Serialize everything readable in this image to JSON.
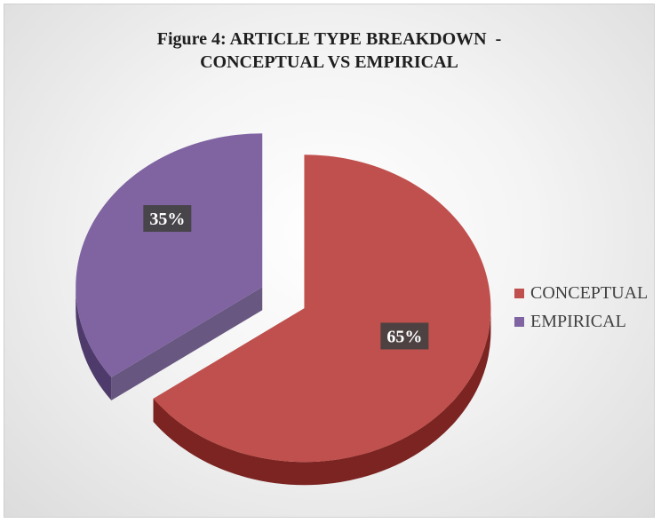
{
  "chart_data": {
    "type": "pie",
    "title_lines": [
      "Figure 4: ARTICLE TYPE BREAKDOWN  -",
      "CONCEPTUAL VS EMPIRICAL"
    ],
    "slices": [
      {
        "label": "CONCEPTUAL",
        "value": 65,
        "display": "65%",
        "color": "#c0504d",
        "side_color": "#7b2421"
      },
      {
        "label": "EMPIRICAL",
        "value": 35,
        "display": "35%",
        "color": "#8064a2",
        "side_color": "#4f3b6b"
      }
    ],
    "legend_position": "right",
    "exploded": true,
    "three_d": true
  }
}
